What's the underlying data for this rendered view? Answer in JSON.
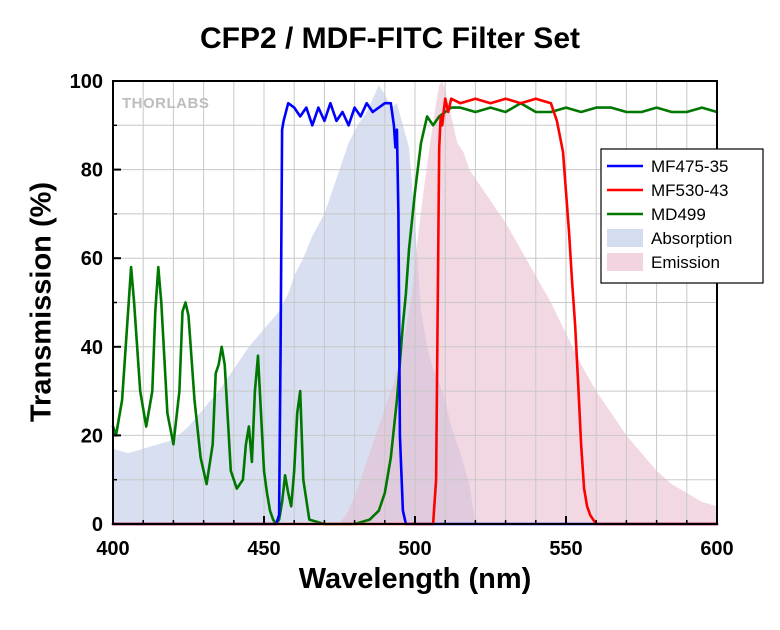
{
  "chart_data": {
    "type": "line",
    "title": "CFP2 / MDF-FITC Filter Set",
    "xlabel": "Wavelength (nm)",
    "ylabel": "Transmission (%)",
    "xlim": [
      400,
      600
    ],
    "ylim": [
      0,
      100
    ],
    "xticks": [
      400,
      450,
      500,
      550,
      600
    ],
    "yticks": [
      0,
      20,
      40,
      60,
      80,
      100
    ],
    "grid": true,
    "legend_position": "right",
    "watermark": "THORLABS",
    "series": [
      {
        "name": "MF475-35",
        "kind": "line",
        "color": "#0000ff",
        "x": [
          400,
          454,
          455,
          455.5,
          456,
          456.5,
          458,
          460,
          462,
          464,
          466,
          468,
          470,
          472,
          474,
          476,
          478,
          480,
          482,
          484,
          486,
          488,
          490,
          492,
          493,
          493.5,
          494,
          494.5,
          495,
          496,
          497,
          600
        ],
        "y": [
          0,
          0,
          2,
          40,
          89,
          91,
          95,
          94,
          92,
          94,
          90,
          94,
          91,
          95,
          91,
          93,
          90,
          94,
          92,
          95,
          93,
          94,
          95,
          95,
          90,
          85,
          89,
          70,
          20,
          3,
          0,
          0
        ]
      },
      {
        "name": "MF530-43",
        "kind": "line",
        "color": "#ff0000",
        "x": [
          400,
          506,
          507,
          508,
          508.5,
          509,
          510,
          511,
          512,
          515,
          520,
          525,
          530,
          535,
          540,
          545,
          547,
          549,
          550,
          551,
          552,
          553,
          554,
          555,
          556,
          557,
          558,
          559,
          560,
          600
        ],
        "y": [
          0,
          0,
          10,
          85,
          92,
          90,
          96,
          93,
          96,
          95,
          96,
          95,
          96,
          95,
          96,
          95,
          91,
          84,
          75,
          66,
          55,
          45,
          32,
          18,
          8,
          4,
          2,
          1,
          0,
          0
        ]
      },
      {
        "name": "MD499",
        "kind": "line",
        "color": "#007700",
        "x": [
          400,
          401,
          403,
          405,
          406,
          407,
          409,
          411,
          413,
          414,
          415,
          416,
          418,
          420,
          422,
          423,
          424,
          425,
          427,
          429,
          431,
          433,
          434,
          435,
          436,
          437,
          439,
          441,
          443,
          444,
          445,
          446,
          447,
          448,
          449,
          450,
          451,
          452,
          453,
          454,
          455,
          456,
          457,
          458,
          459,
          460,
          461,
          462,
          463,
          465,
          470,
          475,
          480,
          485,
          488,
          490,
          492,
          494,
          496,
          497,
          498,
          500,
          502,
          504,
          505,
          506,
          507,
          508,
          510,
          512,
          515,
          520,
          525,
          530,
          535,
          540,
          545,
          550,
          555,
          560,
          565,
          570,
          575,
          580,
          585,
          590,
          595,
          600
        ],
        "y": [
          22,
          20,
          28,
          48,
          58,
          50,
          30,
          22,
          30,
          48,
          58,
          50,
          25,
          18,
          30,
          48,
          50,
          47,
          28,
          15,
          9,
          18,
          34,
          36,
          40,
          36,
          12,
          8,
          10,
          18,
          22,
          14,
          30,
          38,
          25,
          12,
          7,
          3,
          1,
          0,
          1,
          5,
          11,
          7,
          4,
          12,
          25,
          30,
          10,
          1,
          0,
          0,
          0,
          1,
          3,
          7,
          15,
          28,
          45,
          52,
          62,
          75,
          86,
          92,
          91,
          90,
          91,
          92,
          93,
          94,
          94,
          93,
          94,
          93,
          95,
          93,
          93,
          94,
          93,
          94,
          94,
          93,
          93,
          94,
          93,
          93,
          94,
          93
        ]
      },
      {
        "name": "Absorption",
        "kind": "area",
        "color": "#b8c4e6",
        "x": [
          400,
          405,
          410,
          415,
          420,
          425,
          430,
          435,
          440,
          445,
          450,
          455,
          458,
          460,
          463,
          466,
          470,
          474,
          478,
          481,
          484,
          486,
          488,
          490,
          492,
          494,
          496,
          498,
          500,
          502,
          504,
          506,
          508,
          510,
          512,
          515,
          518,
          520
        ],
        "y": [
          17,
          16,
          17,
          18,
          19,
          22,
          26,
          30,
          35,
          40,
          44,
          48,
          52,
          56,
          60,
          65,
          70,
          78,
          86,
          90,
          93,
          96,
          99,
          97,
          94,
          95,
          90,
          85,
          68,
          48,
          40,
          35,
          32,
          28,
          22,
          16,
          9,
          0
        ]
      },
      {
        "name": "Emission",
        "kind": "area",
        "color": "#e8b8cc",
        "x": [
          475,
          478,
          481,
          484,
          487,
          490,
          493,
          496,
          499,
          501,
          503,
          505,
          507,
          508,
          509,
          510,
          511,
          512,
          514,
          516,
          518,
          520,
          523,
          526,
          530,
          535,
          540,
          545,
          550,
          555,
          560,
          565,
          570,
          575,
          580,
          585,
          590,
          595,
          600
        ],
        "y": [
          0,
          3,
          8,
          14,
          20,
          26,
          32,
          40,
          52,
          65,
          76,
          86,
          95,
          99,
          100,
          98,
          95,
          92,
          86,
          84,
          80,
          78,
          75,
          72,
          68,
          62,
          56,
          50,
          43,
          36,
          30,
          25,
          20,
          16,
          12,
          9,
          7,
          5,
          4
        ]
      }
    ]
  }
}
